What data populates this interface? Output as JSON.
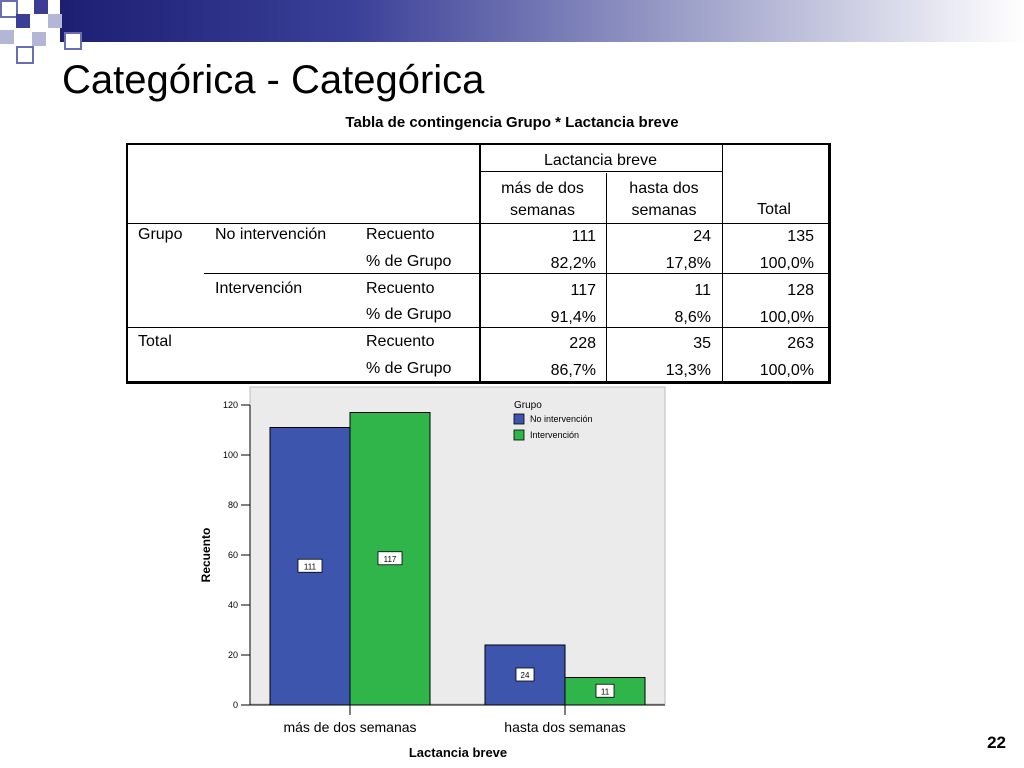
{
  "slide": {
    "title": "Categórica - Categórica",
    "page_number": "22",
    "colors": {
      "header_dark": "#1c1f72",
      "square_light": "#b4b6d6",
      "square_dark": "#3b3e94"
    }
  },
  "table": {
    "title": "Tabla de contingencia Grupo * Lactancia breve",
    "col_group_header": "Lactancia breve",
    "col_headers": [
      "más de dos semanas",
      "hasta dos semanas",
      "Total"
    ],
    "row_var": "Grupo",
    "groups": [
      {
        "label": "No intervención",
        "rows": [
          {
            "stat": "Recuento",
            "values": [
              "111",
              "24",
              "135"
            ]
          },
          {
            "stat": "% de Grupo",
            "values": [
              "82,2%",
              "17,8%",
              "100,0%"
            ]
          }
        ]
      },
      {
        "label": "Intervención",
        "rows": [
          {
            "stat": "Recuento",
            "values": [
              "117",
              "11",
              "128"
            ]
          },
          {
            "stat": "% de Grupo",
            "values": [
              "91,4%",
              "8,6%",
              "100,0%"
            ]
          }
        ]
      }
    ],
    "total": {
      "label": "Total",
      "rows": [
        {
          "stat": "Recuento",
          "values": [
            "228",
            "35",
            "263"
          ]
        },
        {
          "stat": "% de Grupo",
          "values": [
            "86,7%",
            "13,3%",
            "100,0%"
          ]
        }
      ]
    }
  },
  "chart_data": {
    "type": "bar",
    "categories": [
      "más de dos semanas",
      "hasta dos semanas"
    ],
    "series": [
      {
        "name": "No intervención",
        "values": [
          111,
          24
        ],
        "color": "#3e55ad"
      },
      {
        "name": "Intervención",
        "values": [
          117,
          11
        ],
        "color": "#2fb54a"
      }
    ],
    "title": "",
    "xlabel": "Lactancia breve",
    "ylabel": "Recuento",
    "ylim": [
      0,
      120
    ],
    "yticks": [
      0,
      20,
      40,
      60,
      80,
      100,
      120
    ],
    "legend_title": "Grupo",
    "legend_position": "top-right",
    "grid": false,
    "data_labels": true,
    "plot_background": "#ebebeb"
  }
}
